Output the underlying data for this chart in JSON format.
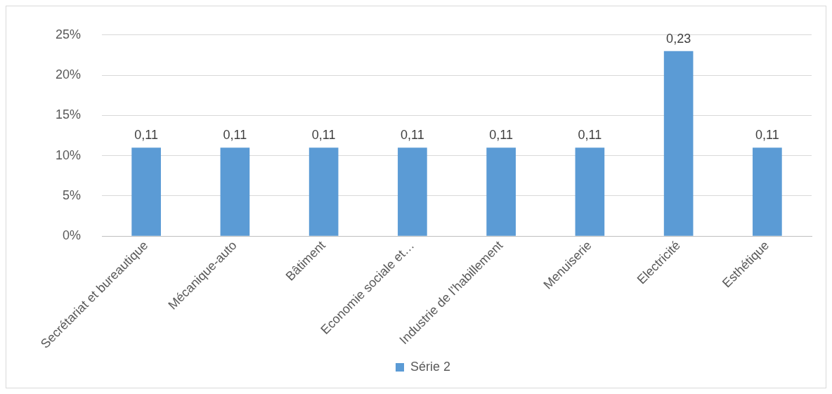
{
  "chart_data": {
    "type": "bar",
    "categories": [
      "Secrétariat et bureautique",
      "Mécanique-auto",
      "Bâtiment",
      "Economie sociale et…",
      "Industrie de l’habillement",
      "Menuiserie",
      "Electricité",
      "Esthétique"
    ],
    "series": [
      {
        "name": "Série 2",
        "color": "#5b9bd5",
        "values": [
          0.11,
          0.11,
          0.11,
          0.11,
          0.11,
          0.11,
          0.23,
          0.11
        ],
        "value_labels": [
          "0,11",
          "0,11",
          "0,11",
          "0,11",
          "0,11",
          "0,11",
          "0,23",
          "0,11"
        ]
      }
    ],
    "ylim": [
      0,
      0.25
    ],
    "yticks": [
      {
        "value": 0,
        "label": "0%"
      },
      {
        "value": 0.05,
        "label": "5%"
      },
      {
        "value": 0.1,
        "label": "10%"
      },
      {
        "value": 0.15,
        "label": "15%"
      },
      {
        "value": 0.2,
        "label": "20%"
      },
      {
        "value": 0.25,
        "label": "25%"
      }
    ],
    "grid": "y",
    "legend": "bottom"
  }
}
